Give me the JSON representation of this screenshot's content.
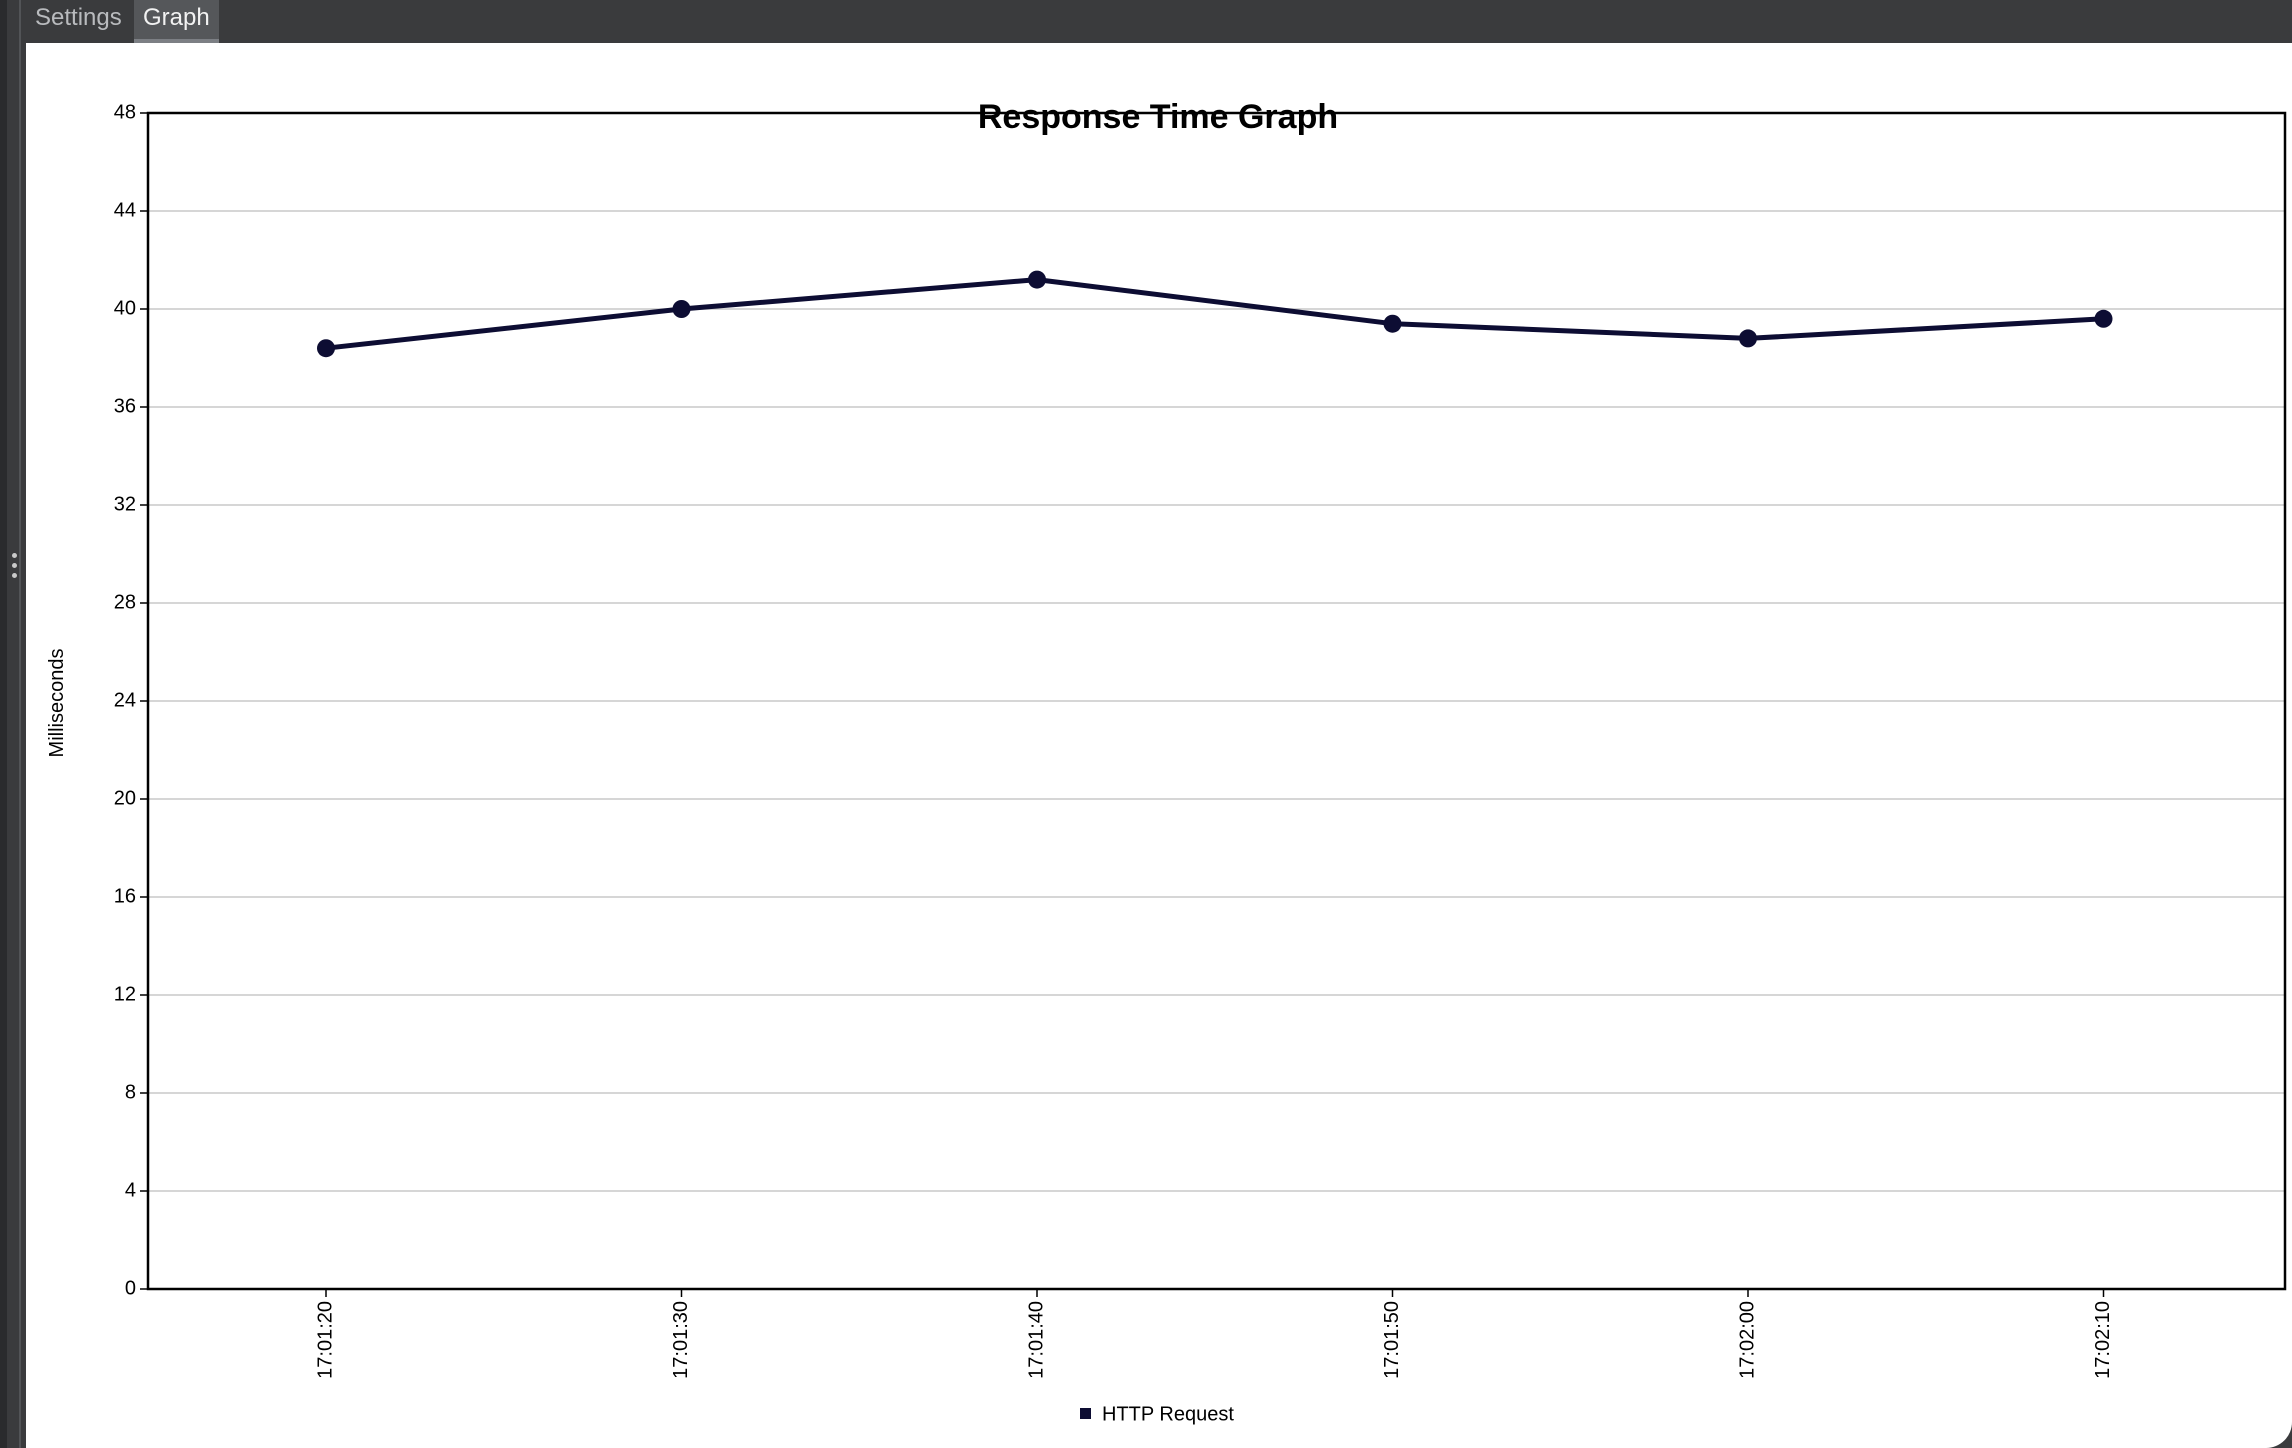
{
  "tabs": [
    {
      "label": "Settings",
      "active": false
    },
    {
      "label": "Graph",
      "active": true
    }
  ],
  "chart_data": {
    "type": "line",
    "title": "Response Time Graph",
    "xlabel": "",
    "ylabel": "Milliseconds",
    "categories": [
      "17:01:20",
      "17:01:30",
      "17:01:40",
      "17:01:50",
      "17:02:00",
      "17:02:10"
    ],
    "series": [
      {
        "name": "HTTP Request",
        "values": [
          38.4,
          40.0,
          41.2,
          39.4,
          38.8,
          39.6
        ],
        "color": "#0d0d33"
      }
    ],
    "ylim": [
      0,
      48
    ],
    "yticks": [
      0,
      4,
      8,
      12,
      16,
      20,
      24,
      28,
      32,
      36,
      40,
      44,
      48
    ],
    "grid": true,
    "legend_position": "bottom-center"
  },
  "colors": {
    "frame_background": "#3a3b3d",
    "active_tab": "#55575a",
    "line": "#0d0d33"
  }
}
